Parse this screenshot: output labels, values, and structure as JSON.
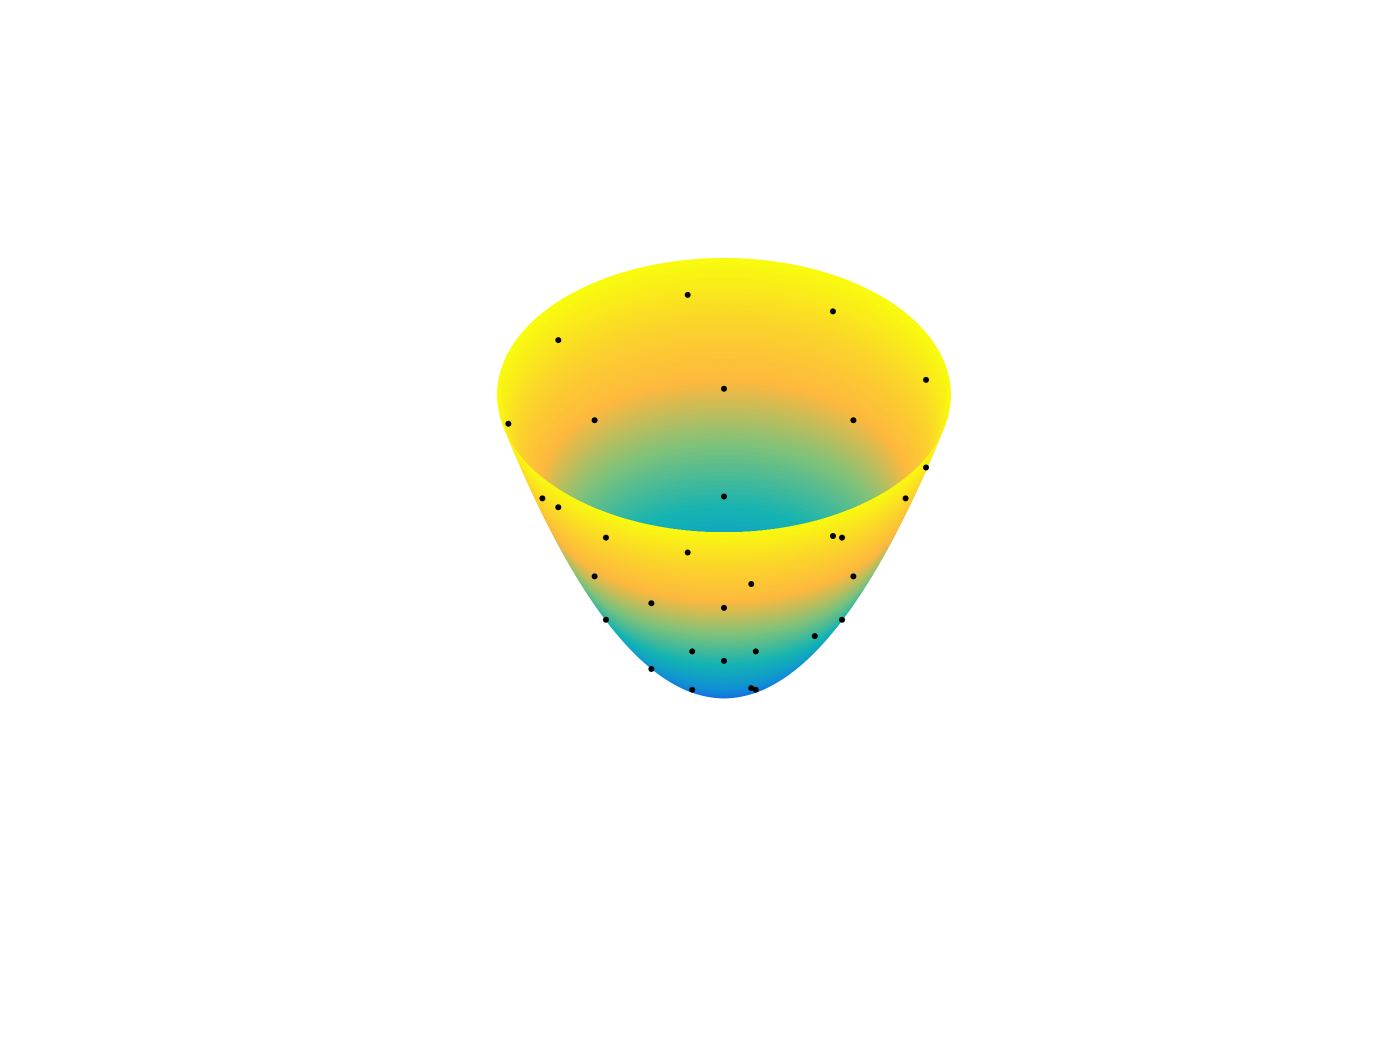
{
  "chart_data": {
    "type": "surface-scatter3d",
    "zlim": [
      0,
      1
    ],
    "colormap": [
      "#1a56e6",
      "#0f8fd6",
      "#14b3b2",
      "#7fc27a",
      "#fdb83e",
      "#fbd52a",
      "#f9fb0e"
    ],
    "marker_color": "#000000",
    "x": [
      0.89,
      0.48,
      -0.16,
      -0.73,
      -0.95,
      -0.73,
      -0.16,
      0.48,
      0.89,
      0.8,
      0.57,
      0,
      -0.57,
      -0.8,
      -0.57,
      0,
      0.57,
      0.52,
      0,
      -0.52,
      -0.52,
      0,
      0.52,
      0.4,
      0.12,
      -0.32,
      -0.32,
      0.12,
      0.14,
      -0.14,
      -0.14,
      0.14
    ],
    "y": [
      0.32,
      0.82,
      0.94,
      0.61,
      0,
      -0.61,
      -0.94,
      -0.82,
      -0.32,
      0,
      0.57,
      0.8,
      0.57,
      0,
      -0.57,
      -0.8,
      -0.57,
      0.3,
      0.6,
      0.3,
      -0.3,
      -0.6,
      -0.3,
      0,
      0.38,
      0.24,
      -0.24,
      -0.38,
      0.14,
      0.14,
      -0.14,
      -0.14
    ],
    "z": [
      0.9,
      0.9,
      0.9,
      0.9,
      0.9,
      0.9,
      0.9,
      0.9,
      0.9,
      0.64,
      0.64,
      0.64,
      0.64,
      0.64,
      0.64,
      0.64,
      0.64,
      0.36,
      0.36,
      0.36,
      0.36,
      0.36,
      0.36,
      0.16,
      0.16,
      0.16,
      0.16,
      0.16,
      0.04,
      0.04,
      0.04,
      0.04
    ]
  }
}
